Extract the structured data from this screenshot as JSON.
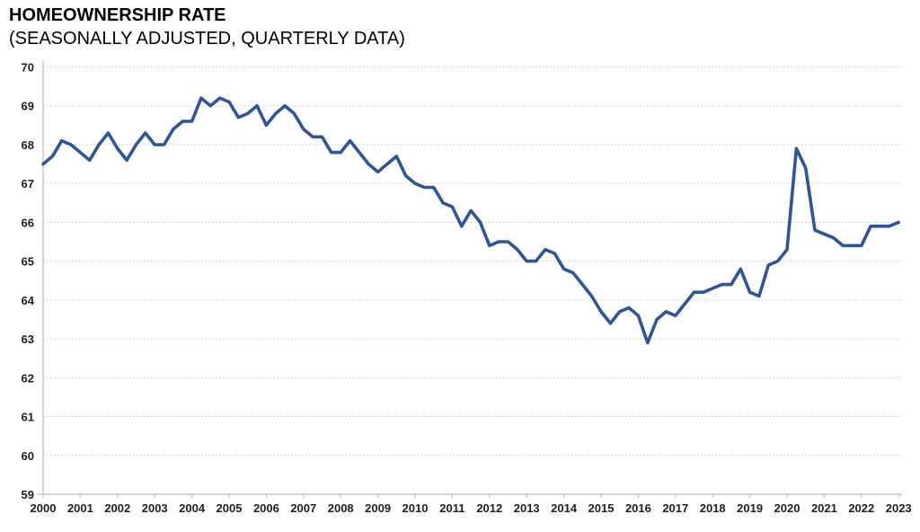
{
  "chart_data": {
    "type": "line",
    "title": "HOMEOWNERSHIP RATE",
    "subtitle": "(SEASONALLY ADJUSTED, QUARTERLY DATA)",
    "frequency": "quarterly",
    "x_start_year": 2000,
    "x_tick_labels": [
      "2000",
      "2001",
      "2002",
      "2003",
      "2004",
      "2005",
      "2006",
      "2007",
      "2008",
      "2009",
      "2010",
      "2011",
      "2012",
      "2013",
      "2014",
      "2015",
      "2016",
      "2017",
      "2018",
      "2019",
      "2020",
      "2021",
      "2022",
      "2023"
    ],
    "y_ticks": [
      59,
      60,
      61,
      62,
      63,
      64,
      65,
      66,
      67,
      68,
      69,
      70
    ],
    "ylim": [
      59,
      70
    ],
    "grid": true,
    "legend": "none",
    "line_color": "#2f5597",
    "grid_color": "#c9c9c9",
    "axis_color": "#bfbfbf",
    "tick_label_color": "#1f1f1f",
    "series": [
      {
        "name": "Homeownership rate (%)",
        "values": [
          67.5,
          67.7,
          68.1,
          68.0,
          67.8,
          67.6,
          68.0,
          68.3,
          67.9,
          67.6,
          68.0,
          68.3,
          68.0,
          68.0,
          68.4,
          68.6,
          68.6,
          69.2,
          69.0,
          69.2,
          69.1,
          68.7,
          68.8,
          69.0,
          68.5,
          68.8,
          69.0,
          68.8,
          68.4,
          68.2,
          68.2,
          67.8,
          67.8,
          68.1,
          67.8,
          67.5,
          67.3,
          67.5,
          67.7,
          67.2,
          67.0,
          66.9,
          66.9,
          66.5,
          66.4,
          65.9,
          66.3,
          66.0,
          65.4,
          65.5,
          65.5,
          65.3,
          65.0,
          65.0,
          65.3,
          65.2,
          64.8,
          64.7,
          64.4,
          64.1,
          63.7,
          63.4,
          63.7,
          63.8,
          63.6,
          62.9,
          63.5,
          63.7,
          63.6,
          63.9,
          64.2,
          64.2,
          64.3,
          64.4,
          64.4,
          64.8,
          64.2,
          64.1,
          64.9,
          65.0,
          65.3,
          67.9,
          67.4,
          65.8,
          65.7,
          65.6,
          65.4,
          65.4,
          65.4,
          65.9,
          65.9,
          65.9,
          66.0
        ]
      }
    ]
  }
}
